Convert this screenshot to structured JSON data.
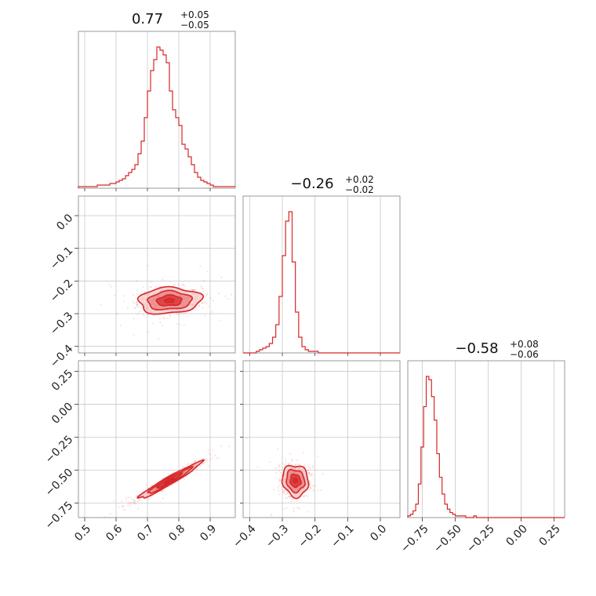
{
  "colors": {
    "series": "#d62728",
    "fill_light": "#f4b6b7",
    "fill_mid": "#e87a7c",
    "fill_dark": "#d62728"
  },
  "chart_data": {
    "type": "corner",
    "grid": true,
    "parameters": [
      {
        "title_value": "0.77",
        "title_plus": "+0.05",
        "title_minus": "−0.05",
        "range": [
          0.48,
          0.98
        ],
        "ticks": [
          {
            "v": 0.5,
            "label": "0.5"
          },
          {
            "v": 0.6,
            "label": "0.6"
          },
          {
            "v": 0.7,
            "label": "0.7"
          },
          {
            "v": 0.8,
            "label": "0.8"
          },
          {
            "v": 0.9,
            "label": "0.9"
          }
        ]
      },
      {
        "title_value": "−0.26",
        "title_plus": "+0.02",
        "title_minus": "−0.02",
        "range": [
          -0.42,
          0.06
        ],
        "ticks": [
          {
            "v": -0.4,
            "label": "−0.4"
          },
          {
            "v": -0.3,
            "label": "−0.3"
          },
          {
            "v": -0.2,
            "label": "−0.2"
          },
          {
            "v": -0.1,
            "label": "−0.1"
          },
          {
            "v": 0.0,
            "label": "0.0"
          }
        ]
      },
      {
        "title_value": "−0.58",
        "title_plus": "+0.08",
        "title_minus": "−0.06",
        "range": [
          -0.86,
          0.33
        ],
        "ticks": [
          {
            "v": -0.75,
            "label": "−0.75"
          },
          {
            "v": -0.5,
            "label": "−0.50"
          },
          {
            "v": -0.25,
            "label": "−0.25"
          },
          {
            "v": 0.0,
            "label": "0.00"
          },
          {
            "v": 0.25,
            "label": "0.25"
          }
        ]
      }
    ],
    "hist": [
      {
        "bins_start": 0.48,
        "bin_width": 0.01,
        "counts": [
          1,
          1,
          1,
          1,
          1,
          1,
          2,
          2,
          2,
          2,
          3,
          3,
          4,
          5,
          6,
          8,
          10,
          12,
          15,
          22,
          30,
          45,
          62,
          75,
          82,
          90,
          88,
          85,
          80,
          62,
          50,
          45,
          40,
          28,
          25,
          20,
          15,
          10,
          7,
          5,
          4,
          3,
          2,
          1,
          1,
          1,
          1,
          1,
          1,
          1
        ]
      },
      {
        "bins_start": -0.42,
        "bin_width": 0.01,
        "counts": [
          0,
          0,
          0,
          0,
          1,
          2,
          3,
          4,
          6,
          10,
          18,
          36,
          62,
          84,
          90,
          58,
          26,
          10,
          4,
          2,
          1,
          1,
          1,
          0,
          0,
          0,
          0,
          0,
          0,
          0,
          0,
          0,
          0,
          0,
          0,
          0,
          0,
          0,
          0,
          0,
          0,
          0,
          0,
          0,
          0,
          0,
          0,
          0,
          0
        ]
      },
      {
        "bins_start": -0.86,
        "bin_width": 0.02,
        "counts": [
          1,
          2,
          4,
          8,
          20,
          42,
          66,
          84,
          82,
          72,
          58,
          38,
          24,
          14,
          8,
          5,
          3,
          2,
          1,
          1,
          1,
          1,
          0,
          0,
          0,
          1,
          0,
          0,
          0,
          0,
          0,
          0,
          0,
          0,
          0,
          0,
          0,
          0,
          0,
          0,
          0,
          0,
          0,
          0,
          0,
          0,
          0,
          0,
          0,
          0,
          0,
          0,
          0,
          0,
          0,
          0,
          0,
          0,
          0,
          0
        ]
      }
    ],
    "scatter_2d": [
      {
        "pair": [
          0,
          1
        ],
        "center": [
          0.77,
          -0.26
        ],
        "spread": [
          0.05,
          0.02
        ],
        "correlation": 0.1
      },
      {
        "pair": [
          0,
          2
        ],
        "center": [
          0.77,
          -0.58
        ],
        "spread": [
          0.05,
          0.07
        ],
        "correlation": 0.97
      },
      {
        "pair": [
          1,
          2
        ],
        "center": [
          -0.26,
          -0.58
        ],
        "spread": [
          0.02,
          0.06
        ],
        "correlation": -0.1
      }
    ]
  }
}
